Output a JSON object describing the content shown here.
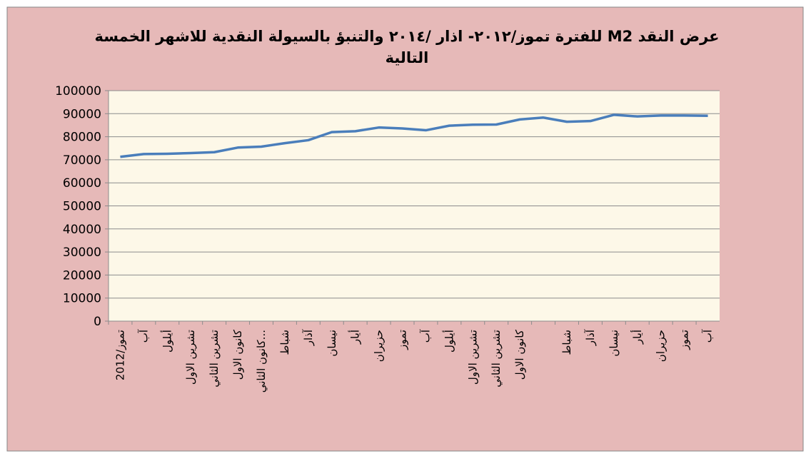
{
  "chart_data": {
    "type": "line",
    "title": "عرض النقد M2 للفترة   تموز/٢٠١٢- اذار /٢٠١٤ والتنبؤ بالسيولة النقدية للاشهر الخمسة التالية",
    "categories": [
      "تموز/2012",
      "آب",
      "أيلول",
      "تشرين الاول",
      "تشرين الثاني",
      "كانون الاول",
      "كانون الثاني...",
      "شباط",
      "آذار",
      "نيسان",
      "أيار",
      "حزيران",
      "تموز",
      "آب",
      "أيلول",
      "تشرين الاول",
      "تشرين الثاني",
      "كانون الاول",
      null,
      "شباط",
      "آذار",
      "نيسان",
      "أيار",
      "حزيران",
      "تموز",
      "آب"
    ],
    "series": [
      {
        "name": "M2",
        "color": "#4a7ebb",
        "values": [
          71300,
          72500,
          72600,
          72900,
          73300,
          75300,
          75700,
          77200,
          78500,
          82000,
          82400,
          84000,
          83600,
          82800,
          84800,
          85200,
          85300,
          87500,
          88300,
          86500,
          86800,
          89500,
          88800,
          89200,
          89200,
          89100
        ]
      }
    ],
    "ylim": [
      0,
      100000
    ],
    "yticks": [
      0,
      10000,
      20000,
      30000,
      40000,
      50000,
      60000,
      70000,
      80000,
      90000,
      100000
    ],
    "grid": true
  }
}
